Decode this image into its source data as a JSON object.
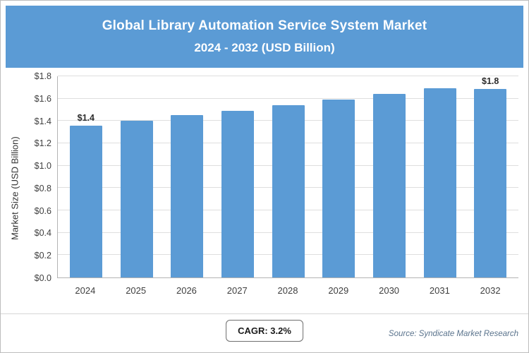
{
  "header": {
    "title": "Global Library Automation Service System Market",
    "subtitle": "2024 - 2032 (USD Billion)"
  },
  "footer": {
    "cagr_label": "CAGR: 3.2%",
    "source": "Source: Syndicate Market Research"
  },
  "theme": {
    "banner_bg": "#5b9bd5",
    "bar_color": "#5b9bd5",
    "gridline_color": "#dedede"
  },
  "chart_data": {
    "type": "bar",
    "title": "Global Library Automation Service System Market 2024 - 2032 (USD Billion)",
    "categories": [
      "2024",
      "2025",
      "2026",
      "2027",
      "2028",
      "2029",
      "2030",
      "2031",
      "2032"
    ],
    "values": [
      1.36,
      1.4,
      1.45,
      1.49,
      1.54,
      1.59,
      1.64,
      1.69,
      1.75
    ],
    "data_labels": [
      "$1.4",
      "",
      "",
      "",
      "",
      "",
      "",
      "",
      "$1.8"
    ],
    "xlabel": "",
    "ylabel": "Market Size (USD Billion)",
    "ylim": [
      0,
      1.8
    ],
    "yticks": [
      0,
      0.2,
      0.4,
      0.6,
      0.8,
      1.0,
      1.2,
      1.4,
      1.6,
      1.8
    ],
    "ytick_labels": [
      "$0.0",
      "$0.2",
      "$0.4",
      "$0.6",
      "$0.8",
      "$1.0",
      "$1.2",
      "$1.4",
      "$1.6",
      "$1.8"
    ],
    "grid": true,
    "legend": "none",
    "annotations": [
      "CAGR: 3.2%"
    ]
  }
}
